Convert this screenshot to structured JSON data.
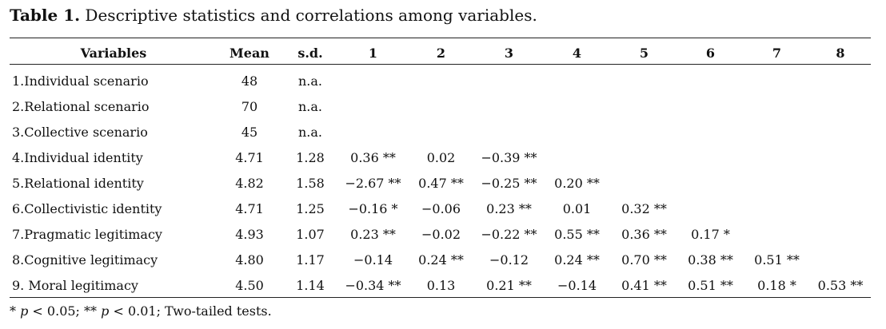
{
  "caption": {
    "label": "Table 1.",
    "text": " Descriptive statistics and correlations among variables."
  },
  "headers": [
    "Variables",
    "Mean",
    "s.d.",
    "1",
    "2",
    "3",
    "4",
    "5",
    "6",
    "7",
    "8"
  ],
  "rows": [
    [
      "1.Individual scenario",
      "48",
      "n.a.",
      "",
      "",
      "",
      "",
      "",
      "",
      "",
      ""
    ],
    [
      "2.Relational scenario",
      "70",
      "n.a.",
      "",
      "",
      "",
      "",
      "",
      "",
      "",
      ""
    ],
    [
      "3.Collective scenario",
      "45",
      "n.a.",
      "",
      "",
      "",
      "",
      "",
      "",
      "",
      ""
    ],
    [
      "4.Individual identity",
      "4.71",
      "1.28",
      "0.36 **",
      "0.02",
      "−0.39 **",
      "",
      "",
      "",
      "",
      ""
    ],
    [
      "5.Relational identity",
      "4.82",
      "1.58",
      "−2.67 **",
      "0.47 **",
      "−0.25 **",
      "0.20 **",
      "",
      "",
      "",
      ""
    ],
    [
      "6.Collectivistic identity",
      "4.71",
      "1.25",
      "−0.16 *",
      "−0.06",
      "0.23 **",
      "0.01",
      "0.32 **",
      "",
      "",
      ""
    ],
    [
      "7.Pragmatic legitimacy",
      "4.93",
      "1.07",
      "0.23 **",
      "−0.02",
      "−0.22 **",
      "0.55 **",
      "0.36 **",
      "0.17 *",
      "",
      ""
    ],
    [
      "8.Cognitive legitimacy",
      "4.80",
      "1.17",
      "−0.14",
      "0.24 **",
      "−0.12",
      "0.24 **",
      "0.70 **",
      "0.38 **",
      "0.51 **",
      ""
    ],
    [
      "9. Moral legitimacy",
      "4.50",
      "1.14",
      "−0.34 **",
      "0.13",
      "0.21 **",
      "−0.14",
      "0.41 **",
      "0.51 **",
      "0.18 *",
      "0.53 **"
    ]
  ],
  "note": {
    "p1_prefix": "* ",
    "p1_var": "p",
    "p1_rest": " < 0.05; ** ",
    "p2_var": "p",
    "p2_rest": " < 0.01; Two-tailed tests."
  }
}
